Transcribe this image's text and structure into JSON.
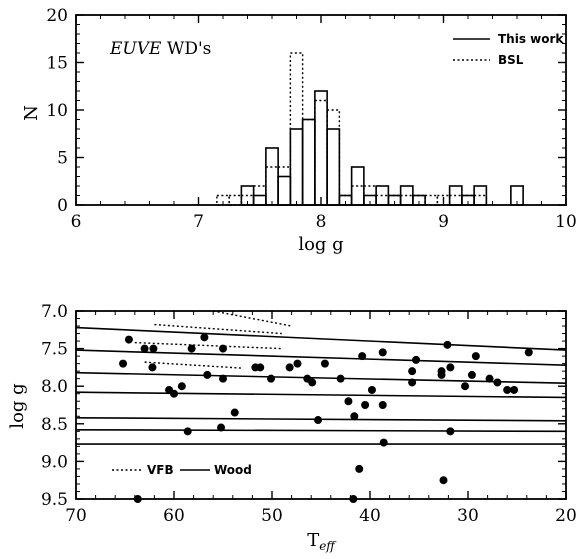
{
  "chart_data": [
    {
      "type": "histogram",
      "annotation": {
        "italic": "EUVE",
        "rest": " WD's"
      },
      "xlabel": "log g",
      "ylabel": "N",
      "xlim": [
        6,
        10
      ],
      "ylim": [
        0,
        20
      ],
      "xticks": [
        "6",
        "7",
        "8",
        "9",
        "10"
      ],
      "yticks": [
        "0",
        "5",
        "10",
        "15",
        "20"
      ],
      "legend_position": "top-right",
      "series": [
        {
          "name": "This work",
          "style": "solid",
          "bins": [
            {
              "x0": 7.35,
              "x1": 7.45,
              "y": 2
            },
            {
              "x0": 7.45,
              "x1": 7.55,
              "y": 1
            },
            {
              "x0": 7.55,
              "x1": 7.65,
              "y": 6
            },
            {
              "x0": 7.65,
              "x1": 7.75,
              "y": 3
            },
            {
              "x0": 7.75,
              "x1": 7.85,
              "y": 8
            },
            {
              "x0": 7.85,
              "x1": 7.95,
              "y": 9
            },
            {
              "x0": 7.95,
              "x1": 8.05,
              "y": 12
            },
            {
              "x0": 8.05,
              "x1": 8.15,
              "y": 8
            },
            {
              "x0": 8.15,
              "x1": 8.25,
              "y": 1
            },
            {
              "x0": 8.25,
              "x1": 8.35,
              "y": 4
            },
            {
              "x0": 8.35,
              "x1": 8.45,
              "y": 1
            },
            {
              "x0": 8.45,
              "x1": 8.55,
              "y": 2
            },
            {
              "x0": 8.55,
              "x1": 8.65,
              "y": 1
            },
            {
              "x0": 8.65,
              "x1": 8.75,
              "y": 2
            },
            {
              "x0": 8.75,
              "x1": 8.85,
              "y": 1
            },
            {
              "x0": 8.85,
              "x1": 8.95,
              "y": 0
            },
            {
              "x0": 8.95,
              "x1": 9.05,
              "y": 0
            },
            {
              "x0": 9.05,
              "x1": 9.15,
              "y": 2
            },
            {
              "x0": 9.15,
              "x1": 9.25,
              "y": 1
            },
            {
              "x0": 9.25,
              "x1": 9.35,
              "y": 2
            },
            {
              "x0": 9.35,
              "x1": 9.45,
              "y": 0
            },
            {
              "x0": 9.45,
              "x1": 9.55,
              "y": 0
            },
            {
              "x0": 9.55,
              "x1": 9.65,
              "y": 2
            }
          ]
        },
        {
          "name": "BSL",
          "style": "dotted",
          "bins": [
            {
              "x0": 7.15,
              "x1": 7.25,
              "y": 1
            },
            {
              "x0": 7.25,
              "x1": 7.35,
              "y": 1
            },
            {
              "x0": 7.35,
              "x1": 7.45,
              "y": 1
            },
            {
              "x0": 7.45,
              "x1": 7.55,
              "y": 2
            },
            {
              "x0": 7.55,
              "x1": 7.65,
              "y": 4
            },
            {
              "x0": 7.65,
              "x1": 7.75,
              "y": 4
            },
            {
              "x0": 7.75,
              "x1": 7.85,
              "y": 16
            },
            {
              "x0": 7.85,
              "x1": 7.95,
              "y": 9
            },
            {
              "x0": 7.95,
              "x1": 8.05,
              "y": 11
            },
            {
              "x0": 8.05,
              "x1": 8.15,
              "y": 10
            },
            {
              "x0": 8.15,
              "x1": 8.25,
              "y": 1
            },
            {
              "x0": 8.25,
              "x1": 8.35,
              "y": 2
            },
            {
              "x0": 8.35,
              "x1": 8.45,
              "y": 2
            },
            {
              "x0": 8.45,
              "x1": 8.55,
              "y": 1
            },
            {
              "x0": 8.55,
              "x1": 8.65,
              "y": 1
            },
            {
              "x0": 8.65,
              "x1": 8.75,
              "y": 1
            },
            {
              "x0": 8.75,
              "x1": 8.85,
              "y": 1
            },
            {
              "x0": 8.85,
              "x1": 8.95,
              "y": 1
            },
            {
              "x0": 8.95,
              "x1": 9.05,
              "y": 1
            },
            {
              "x0": 9.05,
              "x1": 9.15,
              "y": 1
            },
            {
              "x0": 9.15,
              "x1": 9.25,
              "y": 1
            },
            {
              "x0": 9.25,
              "x1": 9.35,
              "y": 1
            }
          ]
        }
      ]
    },
    {
      "type": "scatter",
      "xlabel": "T",
      "xlabel_sub": "eff",
      "ylabel": "log g",
      "xlim": [
        70,
        20
      ],
      "ylim": [
        9.5,
        7.0
      ],
      "xticks": [
        "70",
        "60",
        "50",
        "40",
        "30",
        "20"
      ],
      "yticks": [
        "7.0",
        "7.5",
        "8.0",
        "8.5",
        "9.0",
        "9.5"
      ],
      "legend_position": "bottom-left",
      "legend": [
        "VFB",
        "Wood"
      ],
      "wood_lines": [
        {
          "x": [
            70,
            20
          ],
          "y": [
            7.22,
            7.52
          ]
        },
        {
          "x": [
            70,
            20
          ],
          "y": [
            7.52,
            7.72
          ]
        },
        {
          "x": [
            70,
            20
          ],
          "y": [
            7.82,
            7.96
          ]
        },
        {
          "x": [
            70,
            20
          ],
          "y": [
            8.08,
            8.15
          ]
        },
        {
          "x": [
            70,
            20
          ],
          "y": [
            8.42,
            8.46
          ]
        },
        {
          "x": [
            70,
            20
          ],
          "y": [
            8.58,
            8.6
          ]
        },
        {
          "x": [
            70,
            20
          ],
          "y": [
            8.77,
            8.77
          ]
        }
      ],
      "vfb_lines": [
        {
          "x": [
            56,
            48
          ],
          "y": [
            7.0,
            7.2
          ]
        },
        {
          "x": [
            62,
            49
          ],
          "y": [
            7.18,
            7.3
          ]
        },
        {
          "x": [
            64,
            49
          ],
          "y": [
            7.42,
            7.5
          ]
        },
        {
          "x": [
            63,
            53
          ],
          "y": [
            7.68,
            7.76
          ]
        }
      ],
      "points": [
        {
          "x": 64.6,
          "y": 7.38
        },
        {
          "x": 63.0,
          "y": 7.5
        },
        {
          "x": 62.1,
          "y": 7.5
        },
        {
          "x": 58.2,
          "y": 7.5
        },
        {
          "x": 56.9,
          "y": 7.35
        },
        {
          "x": 55.0,
          "y": 7.5
        },
        {
          "x": 65.2,
          "y": 7.7
        },
        {
          "x": 62.2,
          "y": 7.75
        },
        {
          "x": 60.5,
          "y": 8.05
        },
        {
          "x": 60.0,
          "y": 8.1
        },
        {
          "x": 59.2,
          "y": 8.0
        },
        {
          "x": 56.6,
          "y": 7.85
        },
        {
          "x": 55.0,
          "y": 7.9
        },
        {
          "x": 53.8,
          "y": 8.35
        },
        {
          "x": 55.2,
          "y": 8.55
        },
        {
          "x": 58.6,
          "y": 8.6
        },
        {
          "x": 51.7,
          "y": 7.75
        },
        {
          "x": 51.2,
          "y": 7.75
        },
        {
          "x": 50.1,
          "y": 7.9
        },
        {
          "x": 48.2,
          "y": 7.75
        },
        {
          "x": 47.4,
          "y": 7.7
        },
        {
          "x": 46.4,
          "y": 7.9
        },
        {
          "x": 45.9,
          "y": 7.95
        },
        {
          "x": 44.6,
          "y": 7.7
        },
        {
          "x": 43.0,
          "y": 7.9
        },
        {
          "x": 42.2,
          "y": 8.2
        },
        {
          "x": 41.6,
          "y": 8.4
        },
        {
          "x": 40.8,
          "y": 7.6
        },
        {
          "x": 40.5,
          "y": 8.25
        },
        {
          "x": 39.8,
          "y": 8.05
        },
        {
          "x": 38.7,
          "y": 7.55
        },
        {
          "x": 38.7,
          "y": 8.25
        },
        {
          "x": 38.6,
          "y": 8.75
        },
        {
          "x": 45.3,
          "y": 8.45
        },
        {
          "x": 41.1,
          "y": 9.1
        },
        {
          "x": 41.7,
          "y": 9.5
        },
        {
          "x": 63.7,
          "y": 9.5
        },
        {
          "x": 35.3,
          "y": 7.65
        },
        {
          "x": 35.7,
          "y": 7.8
        },
        {
          "x": 35.7,
          "y": 7.95
        },
        {
          "x": 32.7,
          "y": 7.8
        },
        {
          "x": 32.7,
          "y": 7.85
        },
        {
          "x": 32.1,
          "y": 7.45
        },
        {
          "x": 31.8,
          "y": 7.75
        },
        {
          "x": 30.3,
          "y": 8.0
        },
        {
          "x": 29.2,
          "y": 7.6
        },
        {
          "x": 29.6,
          "y": 7.85
        },
        {
          "x": 27.8,
          "y": 7.9
        },
        {
          "x": 27.0,
          "y": 7.95
        },
        {
          "x": 26.0,
          "y": 8.05
        },
        {
          "x": 25.3,
          "y": 8.05
        },
        {
          "x": 23.8,
          "y": 7.55
        },
        {
          "x": 31.8,
          "y": 8.6
        },
        {
          "x": 32.5,
          "y": 9.25
        }
      ]
    }
  ]
}
